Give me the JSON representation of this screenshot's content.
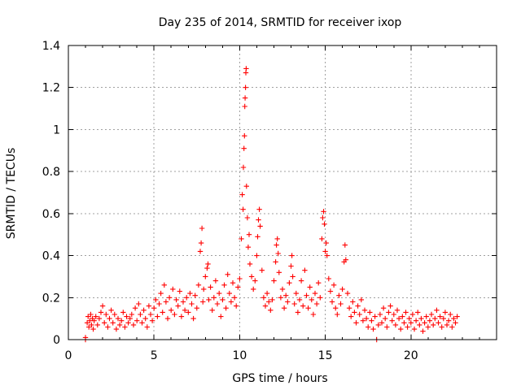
{
  "chart_data": {
    "type": "scatter",
    "title": "Day 235 of 2014, SRMTID for receiver ixop",
    "xlabel": "GPS time / hours",
    "ylabel": "SRMTID / TECUs",
    "xlim": [
      0,
      25
    ],
    "ylim": [
      0,
      1.4
    ],
    "xticks": [
      0,
      5,
      10,
      15,
      20
    ],
    "xtick_labels": [
      "0",
      "5",
      "10",
      "15",
      "20"
    ],
    "yticks": [
      0,
      0.2,
      0.4,
      0.6,
      0.8,
      1.0,
      1.2,
      1.4
    ],
    "ytick_labels": [
      "0",
      "0.2",
      "0.4",
      "0.6",
      "0.8",
      "1",
      "1.2",
      "1.4"
    ],
    "grid": true,
    "marker": "+",
    "series_color": "#ff0000",
    "series": [
      {
        "name": "SRMTID",
        "points": [
          [
            1.0,
            0.0
          ],
          [
            1.0,
            0.01
          ],
          [
            1.1,
            0.08
          ],
          [
            1.15,
            0.11
          ],
          [
            1.2,
            0.06
          ],
          [
            1.25,
            0.09
          ],
          [
            1.3,
            0.12
          ],
          [
            1.35,
            0.07
          ],
          [
            1.4,
            0.1
          ],
          [
            1.45,
            0.05
          ],
          [
            1.5,
            0.09
          ],
          [
            1.6,
            0.11
          ],
          [
            1.7,
            0.07
          ],
          [
            1.8,
            0.1
          ],
          [
            1.9,
            0.13
          ],
          [
            2.0,
            0.16
          ],
          [
            2.1,
            0.08
          ],
          [
            2.2,
            0.12
          ],
          [
            2.3,
            0.06
          ],
          [
            2.4,
            0.1
          ],
          [
            2.5,
            0.14
          ],
          [
            2.6,
            0.08
          ],
          [
            2.7,
            0.12
          ],
          [
            2.8,
            0.05
          ],
          [
            2.9,
            0.1
          ],
          [
            3.0,
            0.07
          ],
          [
            3.1,
            0.09
          ],
          [
            3.2,
            0.13
          ],
          [
            3.3,
            0.06
          ],
          [
            3.4,
            0.11
          ],
          [
            3.5,
            0.08
          ],
          [
            3.6,
            0.1
          ],
          [
            3.7,
            0.12
          ],
          [
            3.8,
            0.07
          ],
          [
            3.9,
            0.15
          ],
          [
            4.0,
            0.09
          ],
          [
            4.1,
            0.17
          ],
          [
            4.2,
            0.12
          ],
          [
            4.3,
            0.08
          ],
          [
            4.4,
            0.14
          ],
          [
            4.5,
            0.1
          ],
          [
            4.6,
            0.06
          ],
          [
            4.7,
            0.16
          ],
          [
            4.8,
            0.12
          ],
          [
            4.9,
            0.09
          ],
          [
            5.0,
            0.15
          ],
          [
            5.1,
            0.19
          ],
          [
            5.2,
            0.11
          ],
          [
            5.3,
            0.17
          ],
          [
            5.4,
            0.22
          ],
          [
            5.5,
            0.13
          ],
          [
            5.6,
            0.26
          ],
          [
            5.7,
            0.18
          ],
          [
            5.8,
            0.1
          ],
          [
            5.9,
            0.2
          ],
          [
            6.0,
            0.14
          ],
          [
            6.1,
            0.24
          ],
          [
            6.2,
            0.12
          ],
          [
            6.3,
            0.19
          ],
          [
            6.4,
            0.16
          ],
          [
            6.5,
            0.23
          ],
          [
            6.6,
            0.11
          ],
          [
            6.7,
            0.18
          ],
          [
            6.8,
            0.14
          ],
          [
            6.9,
            0.2
          ],
          [
            7.0,
            0.13
          ],
          [
            7.1,
            0.22
          ],
          [
            7.2,
            0.17
          ],
          [
            7.3,
            0.1
          ],
          [
            7.4,
            0.21
          ],
          [
            7.5,
            0.15
          ],
          [
            7.6,
            0.26
          ],
          [
            7.7,
            0.42
          ],
          [
            7.75,
            0.46
          ],
          [
            7.8,
            0.53
          ],
          [
            7.85,
            0.18
          ],
          [
            7.9,
            0.24
          ],
          [
            8.0,
            0.3
          ],
          [
            8.1,
            0.34
          ],
          [
            8.15,
            0.36
          ],
          [
            8.2,
            0.19
          ],
          [
            8.3,
            0.25
          ],
          [
            8.4,
            0.14
          ],
          [
            8.5,
            0.2
          ],
          [
            8.6,
            0.28
          ],
          [
            8.7,
            0.17
          ],
          [
            8.8,
            0.22
          ],
          [
            8.9,
            0.11
          ],
          [
            9.0,
            0.19
          ],
          [
            9.1,
            0.26
          ],
          [
            9.2,
            0.15
          ],
          [
            9.3,
            0.31
          ],
          [
            9.4,
            0.22
          ],
          [
            9.5,
            0.18
          ],
          [
            9.6,
            0.27
          ],
          [
            9.7,
            0.2
          ],
          [
            9.8,
            0.16
          ],
          [
            9.9,
            0.25
          ],
          [
            10.0,
            0.29
          ],
          [
            10.1,
            0.48
          ],
          [
            10.15,
            0.69
          ],
          [
            10.2,
            0.62
          ],
          [
            10.22,
            0.82
          ],
          [
            10.25,
            0.91
          ],
          [
            10.28,
            0.97
          ],
          [
            10.3,
            1.11
          ],
          [
            10.32,
            1.15
          ],
          [
            10.34,
            1.2
          ],
          [
            10.36,
            1.27
          ],
          [
            10.38,
            1.29
          ],
          [
            10.4,
            0.73
          ],
          [
            10.45,
            0.58
          ],
          [
            10.5,
            0.44
          ],
          [
            10.55,
            0.5
          ],
          [
            10.6,
            0.36
          ],
          [
            10.7,
            0.3
          ],
          [
            10.8,
            0.24
          ],
          [
            10.9,
            0.28
          ],
          [
            11.0,
            0.4
          ],
          [
            11.05,
            0.49
          ],
          [
            11.1,
            0.57
          ],
          [
            11.15,
            0.62
          ],
          [
            11.2,
            0.54
          ],
          [
            11.3,
            0.33
          ],
          [
            11.4,
            0.2
          ],
          [
            11.5,
            0.16
          ],
          [
            11.6,
            0.22
          ],
          [
            11.7,
            0.18
          ],
          [
            11.8,
            0.14
          ],
          [
            11.9,
            0.19
          ],
          [
            12.0,
            0.28
          ],
          [
            12.1,
            0.37
          ],
          [
            12.15,
            0.45
          ],
          [
            12.2,
            0.48
          ],
          [
            12.25,
            0.41
          ],
          [
            12.3,
            0.32
          ],
          [
            12.4,
            0.2
          ],
          [
            12.5,
            0.24
          ],
          [
            12.6,
            0.15
          ],
          [
            12.7,
            0.21
          ],
          [
            12.8,
            0.18
          ],
          [
            12.9,
            0.27
          ],
          [
            13.0,
            0.35
          ],
          [
            13.05,
            0.4
          ],
          [
            13.1,
            0.3
          ],
          [
            13.2,
            0.17
          ],
          [
            13.3,
            0.22
          ],
          [
            13.4,
            0.13
          ],
          [
            13.5,
            0.19
          ],
          [
            13.6,
            0.28
          ],
          [
            13.7,
            0.16
          ],
          [
            13.8,
            0.33
          ],
          [
            13.9,
            0.21
          ],
          [
            14.0,
            0.15
          ],
          [
            14.1,
            0.25
          ],
          [
            14.2,
            0.19
          ],
          [
            14.3,
            0.12
          ],
          [
            14.4,
            0.22
          ],
          [
            14.5,
            0.17
          ],
          [
            14.6,
            0.27
          ],
          [
            14.7,
            0.2
          ],
          [
            14.8,
            0.48
          ],
          [
            14.85,
            0.58
          ],
          [
            14.9,
            0.61
          ],
          [
            14.95,
            0.55
          ],
          [
            15.0,
            0.42
          ],
          [
            15.05,
            0.46
          ],
          [
            15.1,
            0.4
          ],
          [
            15.2,
            0.29
          ],
          [
            15.3,
            0.23
          ],
          [
            15.4,
            0.18
          ],
          [
            15.5,
            0.26
          ],
          [
            15.6,
            0.15
          ],
          [
            15.7,
            0.12
          ],
          [
            15.8,
            0.21
          ],
          [
            15.9,
            0.17
          ],
          [
            16.0,
            0.24
          ],
          [
            16.1,
            0.37
          ],
          [
            16.15,
            0.45
          ],
          [
            16.2,
            0.38
          ],
          [
            16.3,
            0.22
          ],
          [
            16.4,
            0.15
          ],
          [
            16.5,
            0.11
          ],
          [
            16.6,
            0.18
          ],
          [
            16.7,
            0.13
          ],
          [
            16.8,
            0.08
          ],
          [
            16.9,
            0.16
          ],
          [
            17.0,
            0.12
          ],
          [
            17.1,
            0.19
          ],
          [
            17.2,
            0.09
          ],
          [
            17.3,
            0.14
          ],
          [
            17.4,
            0.1
          ],
          [
            17.5,
            0.06
          ],
          [
            17.6,
            0.13
          ],
          [
            17.7,
            0.09
          ],
          [
            17.8,
            0.05
          ],
          [
            17.9,
            0.11
          ],
          [
            18.0,
            0.0
          ],
          [
            18.1,
            0.07
          ],
          [
            18.2,
            0.12
          ],
          [
            18.3,
            0.08
          ],
          [
            18.4,
            0.15
          ],
          [
            18.5,
            0.1
          ],
          [
            18.6,
            0.06
          ],
          [
            18.7,
            0.13
          ],
          [
            18.8,
            0.16
          ],
          [
            18.9,
            0.09
          ],
          [
            19.0,
            0.12
          ],
          [
            19.1,
            0.07
          ],
          [
            19.2,
            0.14
          ],
          [
            19.3,
            0.1
          ],
          [
            19.4,
            0.05
          ],
          [
            19.5,
            0.11
          ],
          [
            19.6,
            0.08
          ],
          [
            19.7,
            0.13
          ],
          [
            19.8,
            0.06
          ],
          [
            19.9,
            0.1
          ],
          [
            20.0,
            0.08
          ],
          [
            20.1,
            0.12
          ],
          [
            20.2,
            0.05
          ],
          [
            20.3,
            0.09
          ],
          [
            20.4,
            0.13
          ],
          [
            20.5,
            0.07
          ],
          [
            20.6,
            0.1
          ],
          [
            20.7,
            0.04
          ],
          [
            20.8,
            0.08
          ],
          [
            20.9,
            0.11
          ],
          [
            21.0,
            0.06
          ],
          [
            21.1,
            0.09
          ],
          [
            21.2,
            0.12
          ],
          [
            21.3,
            0.07
          ],
          [
            21.4,
            0.1
          ],
          [
            21.5,
            0.14
          ],
          [
            21.6,
            0.08
          ],
          [
            21.7,
            0.11
          ],
          [
            21.8,
            0.06
          ],
          [
            21.9,
            0.1
          ],
          [
            22.0,
            0.13
          ],
          [
            22.1,
            0.07
          ],
          [
            22.2,
            0.09
          ],
          [
            22.3,
            0.12
          ],
          [
            22.4,
            0.06
          ],
          [
            22.5,
            0.1
          ],
          [
            22.6,
            0.08
          ],
          [
            22.7,
            0.11
          ]
        ]
      }
    ]
  }
}
